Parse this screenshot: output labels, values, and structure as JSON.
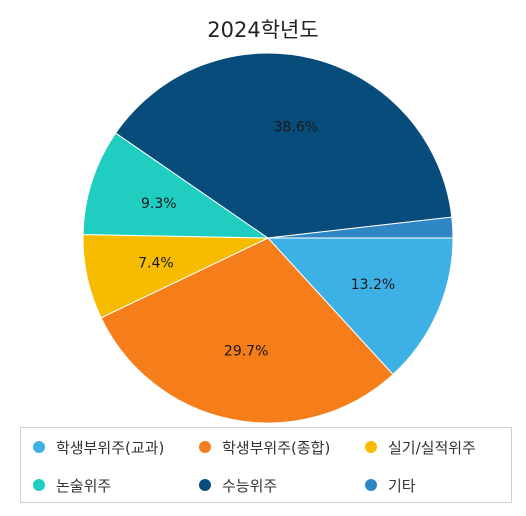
{
  "chart_data": {
    "type": "pie",
    "title": "2024학년도",
    "categories": [
      "학생부위주(교과)",
      "학생부위주(종합)",
      "실기/실적위주",
      "논술위주",
      "수능위주",
      "기타"
    ],
    "values": [
      13.2,
      29.7,
      7.4,
      9.3,
      38.6,
      1.8
    ],
    "value_labels": [
      "13.2%",
      "29.7%",
      "7.4%",
      "9.3%",
      "38.6%",
      ""
    ],
    "colors": [
      "#3DB0E6",
      "#F57D1A",
      "#F7BC00",
      "#20CDC1",
      "#084C7C",
      "#2F86C4"
    ],
    "start_angle_deg": 0,
    "direction": "clockwise",
    "legend_position": "bottom"
  }
}
